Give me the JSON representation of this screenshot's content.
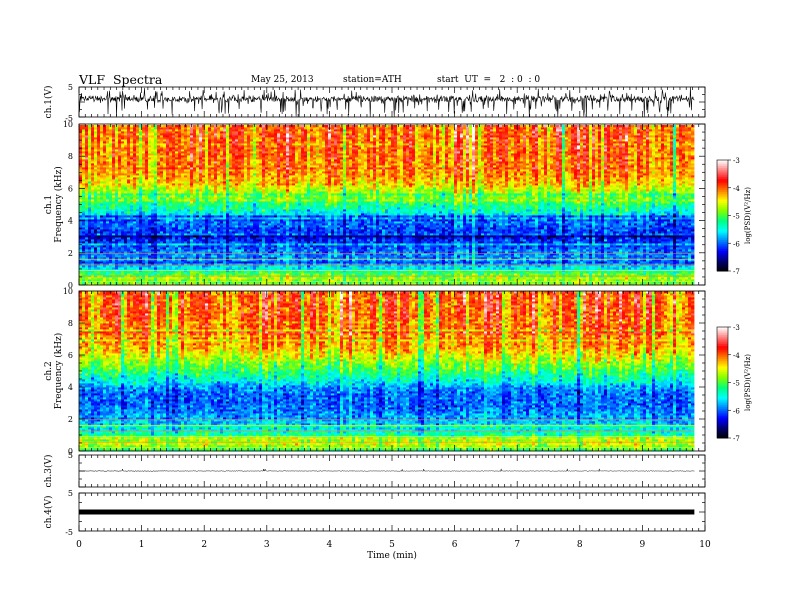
{
  "header": {
    "title": "VLF  Spectra",
    "date": "May 25, 2013",
    "station": "station=ATH",
    "start": "start  UT  =   2  : 0  : 0"
  },
  "chart_data": {
    "type": "heatmap",
    "xlabel": "Time  (min)",
    "xlim": [
      0,
      10
    ],
    "xticks": [
      "0",
      "1",
      "2",
      "3",
      "4",
      "5",
      "6",
      "7",
      "8",
      "9",
      "10"
    ],
    "data_end_min": 9.83,
    "panels": [
      {
        "id": "ch1-waveform",
        "type": "line",
        "ylabel": "ch.1(V)",
        "ylim": [
          -5,
          5
        ],
        "yticks": [
          "5",
          "-5"
        ],
        "signal": "noisy waveform, baseline near 0 V, spikes to about -4 V"
      },
      {
        "id": "ch1-spectrogram",
        "type": "heatmap",
        "ylabel_top": "ch.1",
        "ylabel": "Frequency  (kHz)",
        "ylim": [
          0,
          10
        ],
        "yticks": [
          "0",
          "2",
          "4",
          "6",
          "8",
          "10"
        ],
        "band_profile": [
          [
            0,
            -5.2
          ],
          [
            0.5,
            -4.6
          ],
          [
            1,
            -5.5
          ],
          [
            1.5,
            -5.8
          ],
          [
            2,
            -5.9
          ],
          [
            2.5,
            -6.1
          ],
          [
            3,
            -6.2
          ],
          [
            3.5,
            -6.1
          ],
          [
            4,
            -5.9
          ],
          [
            4.5,
            -5.5
          ],
          [
            5,
            -5.2
          ],
          [
            5.5,
            -4.9
          ],
          [
            6,
            -4.6
          ],
          [
            6.5,
            -4.3
          ],
          [
            7,
            -4.1
          ],
          [
            8,
            -4.0
          ],
          [
            9,
            -3.95
          ],
          [
            10,
            -3.95
          ]
        ]
      },
      {
        "id": "ch2-spectrogram",
        "type": "heatmap",
        "ylabel_top": "ch.2",
        "ylabel": "Frequency  (kHz)",
        "ylim": [
          0,
          10
        ],
        "yticks": [
          "0",
          "2",
          "4",
          "6",
          "8",
          "10"
        ],
        "band_profile": [
          [
            0,
            -5.2
          ],
          [
            0.5,
            -4.5
          ],
          [
            1,
            -5.2
          ],
          [
            1.5,
            -5.6
          ],
          [
            2,
            -5.7
          ],
          [
            2.5,
            -5.9
          ],
          [
            3,
            -6.0
          ],
          [
            3.5,
            -6.0
          ],
          [
            4,
            -5.8
          ],
          [
            4.5,
            -5.4
          ],
          [
            5,
            -5.1
          ],
          [
            5.5,
            -4.8
          ],
          [
            6,
            -4.5
          ],
          [
            6.5,
            -4.2
          ],
          [
            7,
            -4.05
          ],
          [
            8,
            -3.95
          ],
          [
            9,
            -3.9
          ],
          [
            10,
            -3.9
          ]
        ]
      },
      {
        "id": "ch3-waveform",
        "type": "line",
        "ylabel": "ch.3(V)",
        "ylim": [
          -5,
          5
        ],
        "yticks": [
          "5"
        ],
        "signal": "flat trace near 0 V"
      },
      {
        "id": "ch4-waveform",
        "type": "line",
        "ylabel": "ch.4(V)",
        "ylim": [
          -5,
          5
        ],
        "yticks": [
          "5",
          "-5"
        ],
        "signal": "dense band near 0 V"
      }
    ],
    "colorbar": {
      "label": "log(PSD)(V²/Hz)",
      "range": [
        -7,
        -3
      ],
      "ticks": [
        "-3",
        "-4",
        "-5",
        "-6",
        "-7"
      ],
      "colors": [
        "#000000",
        "#000070",
        "#0000ff",
        "#0080ff",
        "#00ffff",
        "#00ff80",
        "#80ff00",
        "#ffff00",
        "#ff8000",
        "#ff0000",
        "#ff8080",
        "#ffffff"
      ]
    }
  }
}
